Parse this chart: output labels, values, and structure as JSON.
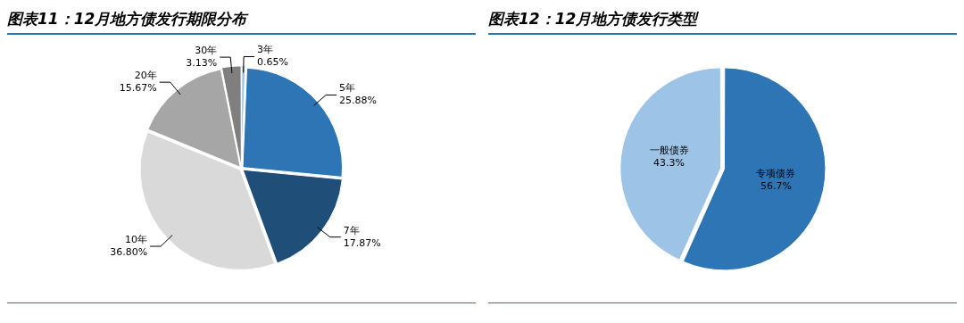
{
  "chart_data": [
    {
      "type": "pie",
      "title": "图表11：12月地方债发行期限分布",
      "categories": [
        "3年",
        "5年",
        "7年",
        "10年",
        "20年",
        "30年"
      ],
      "values": [
        0.65,
        25.88,
        17.87,
        36.8,
        15.67,
        3.13
      ],
      "colors": [
        "#9dc3e6",
        "#2e75b6",
        "#1f4e79",
        "#d9d9d9",
        "#a6a6a6",
        "#7f7f7f"
      ],
      "value_labels": [
        "0.65%",
        "25.88%",
        "17.87%",
        "36.80%",
        "15.67%",
        "3.13%"
      ],
      "legend": false
    },
    {
      "type": "pie",
      "title": "图表12：12月地方债发行类型",
      "categories": [
        "专项债券",
        "一般债券"
      ],
      "values": [
        56.7,
        43.3
      ],
      "colors": [
        "#2e75b6",
        "#9dc3e6"
      ],
      "value_labels": [
        "56.7%",
        "43.3%"
      ],
      "legend": false
    }
  ]
}
